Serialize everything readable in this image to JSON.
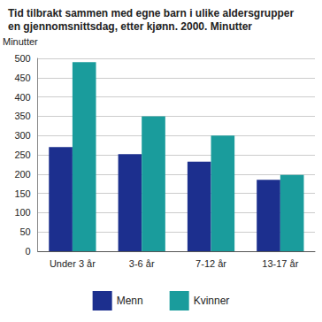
{
  "chart_data": {
    "type": "bar",
    "title": "Tid tilbrakt sammen med egne barn i ulike aldersgrupper\nen gjennomsnittsdag, etter kjønn. 2000. Minutter",
    "y_label": "Minutter",
    "categories": [
      "Under 3 år",
      "3-6 år",
      "7-12 år",
      "13-17 år"
    ],
    "series": [
      {
        "name": "Menn",
        "color": "#1c2f8e",
        "values": [
          270,
          252,
          232,
          185
        ]
      },
      {
        "name": "Kvinner",
        "color": "#1a9c9c",
        "values": [
          490,
          350,
          300,
          198
        ]
      }
    ],
    "ylim": [
      0,
      500
    ],
    "yticks": [
      0,
      50,
      100,
      150,
      200,
      250,
      300,
      350,
      400,
      450,
      500
    ],
    "grid": true,
    "legend": "bottom"
  }
}
